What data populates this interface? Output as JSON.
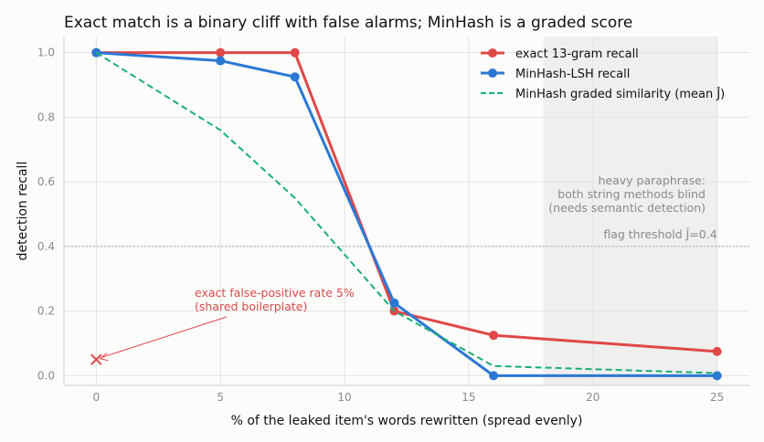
{
  "chart_data": {
    "type": "line",
    "title": "Exact match is a binary cliff with false alarms; MinHash is a graded score",
    "xlabel": "% of the leaked item's words rewritten (spread evenly)",
    "ylabel": "detection recall",
    "xlim": [
      -1.3,
      26.3
    ],
    "ylim": [
      -0.03,
      1.05
    ],
    "xticks": [
      0,
      5,
      10,
      15,
      20,
      25
    ],
    "yticks": [
      0.0,
      0.2,
      0.4,
      0.6,
      0.8,
      1.0
    ],
    "xtick_labels": [
      "0",
      "5",
      "10",
      "15",
      "20",
      "25"
    ],
    "ytick_labels": [
      "0.0",
      "0.2",
      "0.4",
      "0.6",
      "0.8",
      "1.0"
    ],
    "grid": true,
    "legend_position": "top-right",
    "series": [
      {
        "name": "exact 13-gram recall",
        "color": "#e04848",
        "style": "solid",
        "markers": true,
        "x": [
          0,
          5,
          8,
          12,
          16,
          25
        ],
        "y": [
          1.0,
          1.0,
          1.0,
          0.2,
          0.125,
          0.075
        ]
      },
      {
        "name": "MinHash-LSH recall",
        "color": "#2b78d4",
        "style": "solid",
        "markers": true,
        "x": [
          0,
          5,
          8,
          12,
          16,
          25
        ],
        "y": [
          1.0,
          0.975,
          0.925,
          0.225,
          0.0,
          0.0
        ]
      },
      {
        "name": "MinHash graded similarity (mean Ĵ)",
        "color": "#1aae78",
        "style": "dashed",
        "markers": false,
        "x": [
          0,
          5,
          8,
          12,
          16,
          25
        ],
        "y": [
          1.0,
          0.76,
          0.55,
          0.2,
          0.03,
          0.008
        ]
      }
    ],
    "shaded_region": {
      "x_from": 18,
      "x_to": 25,
      "color": "#efefed"
    },
    "threshold": {
      "y": 0.4,
      "label": "flag threshold Ĵ=0.4"
    },
    "false_positive_point": {
      "x": 0,
      "y": 0.05,
      "color": "#e04848",
      "marker": "x"
    },
    "annotations": {
      "paraphrase_lines": [
        "heavy paraphrase:",
        "both string methods blind",
        "(needs semantic detection)"
      ],
      "false_positive_lines": [
        "exact false-positive rate 5%",
        "(shared boilerplate)"
      ]
    }
  }
}
